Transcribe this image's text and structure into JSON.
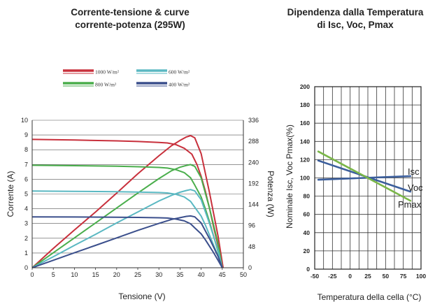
{
  "chart_data": [
    {
      "type": "line",
      "title": "Corrente-tensione & curve corrente-potenza (295W)",
      "title_lines": [
        "Corrente-tensione & curve",
        "corrente-potenza (295W)"
      ],
      "xlabel": "Tensione (V)",
      "ylabel": "Corrente (A)",
      "y2label": "Potenza (W)",
      "xlim": [
        0,
        50
      ],
      "ylim": [
        0,
        10
      ],
      "y2lim": [
        0,
        336
      ],
      "x_ticks": [
        "0",
        "5",
        "10",
        "15",
        "20",
        "25",
        "30",
        "35",
        "40",
        "45",
        "50"
      ],
      "y_ticks": [
        "0",
        "1",
        "2",
        "3",
        "4",
        "5",
        "6",
        "7",
        "8",
        "9",
        "10"
      ],
      "y2_ticks": [
        "0",
        "48",
        "96",
        "144",
        "192",
        "240",
        "288",
        "336"
      ],
      "grid": "horizontal",
      "legend_position": "top",
      "series": [
        {
          "name": "1000 W/m²",
          "color": "#c8303c",
          "iv": [
            [
              0,
              8.7
            ],
            [
              10,
              8.66
            ],
            [
              20,
              8.6
            ],
            [
              25,
              8.56
            ],
            [
              30,
              8.5
            ],
            [
              32,
              8.46
            ],
            [
              34,
              8.35
            ],
            [
              36,
              8.1
            ],
            [
              37.8,
              7.7
            ],
            [
              39,
              7.0
            ],
            [
              40,
              6.2
            ],
            [
              41,
              5.2
            ],
            [
              42,
              4.0
            ],
            [
              43,
              2.7
            ],
            [
              44,
              1.5
            ],
            [
              45.2,
              0
            ]
          ],
          "pv": [
            [
              0,
              0
            ],
            [
              5,
              44
            ],
            [
              10,
              86
            ],
            [
              15,
              127
            ],
            [
              20,
              170
            ],
            [
              25,
              214
            ],
            [
              30,
              255
            ],
            [
              33,
              278
            ],
            [
              35,
              290
            ],
            [
              36.5,
              298
            ],
            [
              37.5,
              301
            ],
            [
              38.5,
              296
            ],
            [
              40,
              260
            ],
            [
              42,
              170
            ],
            [
              44,
              72
            ],
            [
              45.2,
              0
            ]
          ]
        },
        {
          "name": "800 W/m²",
          "color": "#4aae4c",
          "iv": [
            [
              0,
              6.95
            ],
            [
              10,
              6.92
            ],
            [
              20,
              6.88
            ],
            [
              25,
              6.85
            ],
            [
              30,
              6.8
            ],
            [
              32,
              6.76
            ],
            [
              34,
              6.65
            ],
            [
              36,
              6.45
            ],
            [
              37.5,
              6.1
            ],
            [
              38.5,
              5.6
            ],
            [
              40,
              4.8
            ],
            [
              41,
              4.0
            ],
            [
              42,
              3.1
            ],
            [
              43,
              2.1
            ],
            [
              44,
              1.1
            ],
            [
              45,
              0
            ]
          ],
          "pv": [
            [
              0,
              0
            ],
            [
              5,
              34
            ],
            [
              10,
              68
            ],
            [
              15,
              102
            ],
            [
              20,
              136
            ],
            [
              25,
              170
            ],
            [
              30,
              203
            ],
            [
              33,
              221
            ],
            [
              35,
              229
            ],
            [
              36.5,
              233
            ],
            [
              37.5,
              235
            ],
            [
              38.5,
              231
            ],
            [
              40,
              205
            ],
            [
              42,
              135
            ],
            [
              44,
              55
            ],
            [
              45,
              0
            ]
          ]
        },
        {
          "name": "600 W/m²",
          "color": "#5ab8c2",
          "iv": [
            [
              0,
              5.2
            ],
            [
              10,
              5.18
            ],
            [
              20,
              5.15
            ],
            [
              25,
              5.13
            ],
            [
              30,
              5.1
            ],
            [
              32,
              5.07
            ],
            [
              34,
              4.98
            ],
            [
              36,
              4.8
            ],
            [
              37.5,
              4.5
            ],
            [
              38.5,
              4.1
            ],
            [
              40,
              3.5
            ],
            [
              41,
              2.9
            ],
            [
              42,
              2.2
            ],
            [
              43,
              1.5
            ],
            [
              44,
              0.8
            ],
            [
              45,
              0
            ]
          ],
          "pv": [
            [
              0,
              0
            ],
            [
              5,
              25
            ],
            [
              10,
              51
            ],
            [
              15,
              76
            ],
            [
              20,
              102
            ],
            [
              25,
              127
            ],
            [
              30,
              152
            ],
            [
              33,
              165
            ],
            [
              35,
              172
            ],
            [
              36.5,
              176
            ],
            [
              37.5,
              178
            ],
            [
              38.5,
              175
            ],
            [
              40,
              155
            ],
            [
              42,
              100
            ],
            [
              44,
              40
            ],
            [
              45,
              0
            ]
          ]
        },
        {
          "name": "400 W/m²",
          "color": "#3b4f8c",
          "iv": [
            [
              0,
              3.45
            ],
            [
              10,
              3.44
            ],
            [
              20,
              3.42
            ],
            [
              25,
              3.41
            ],
            [
              30,
              3.39
            ],
            [
              32,
              3.37
            ],
            [
              34,
              3.3
            ],
            [
              36,
              3.18
            ],
            [
              37.5,
              2.98
            ],
            [
              38.5,
              2.7
            ],
            [
              40,
              2.3
            ],
            [
              41,
              1.9
            ],
            [
              42,
              1.45
            ],
            [
              43,
              1.0
            ],
            [
              44,
              0.5
            ],
            [
              45,
              0
            ]
          ],
          "pv": [
            [
              0,
              0
            ],
            [
              5,
              17
            ],
            [
              10,
              34
            ],
            [
              15,
              51
            ],
            [
              20,
              68
            ],
            [
              25,
              85
            ],
            [
              30,
              101
            ],
            [
              33,
              110
            ],
            [
              35,
              114
            ],
            [
              36.5,
              117
            ],
            [
              37.5,
              118
            ],
            [
              38.5,
              116
            ],
            [
              40,
              102
            ],
            [
              42,
              66
            ],
            [
              44,
              26
            ],
            [
              45,
              0
            ]
          ]
        }
      ]
    },
    {
      "type": "line",
      "title": "Dipendenza dalla Temperatura di Isc, Voc, Pmax",
      "title_lines": [
        "Dipendenza dalla Temperatura",
        "di Isc, Voc, Pmax"
      ],
      "xlabel": "Temperatura della cella (°C)",
      "ylabel": "Nominale Isc, Voc Pmax(%)",
      "xlim": [
        -50,
        100
      ],
      "ylim": [
        0,
        200
      ],
      "x_ticks": [
        "-50",
        "-25",
        "0",
        "25",
        "50",
        "75",
        "100"
      ],
      "y_ticks": [
        "0",
        "20",
        "40",
        "60",
        "80",
        "100",
        "120",
        "140",
        "160",
        "180",
        "200"
      ],
      "grid": "both",
      "series": [
        {
          "name": "Isc",
          "color": "#3b5e9c",
          "points": [
            [
              -45,
              98
            ],
            [
              85,
              102
            ]
          ]
        },
        {
          "name": "Voc",
          "color": "#3b5e9c",
          "points": [
            [
              -45,
              119
            ],
            [
              85,
              85
            ]
          ]
        },
        {
          "name": "Pmax",
          "color": "#7ab648",
          "points": [
            [
              -45,
              129
            ],
            [
              85,
              75
            ]
          ]
        }
      ]
    }
  ]
}
